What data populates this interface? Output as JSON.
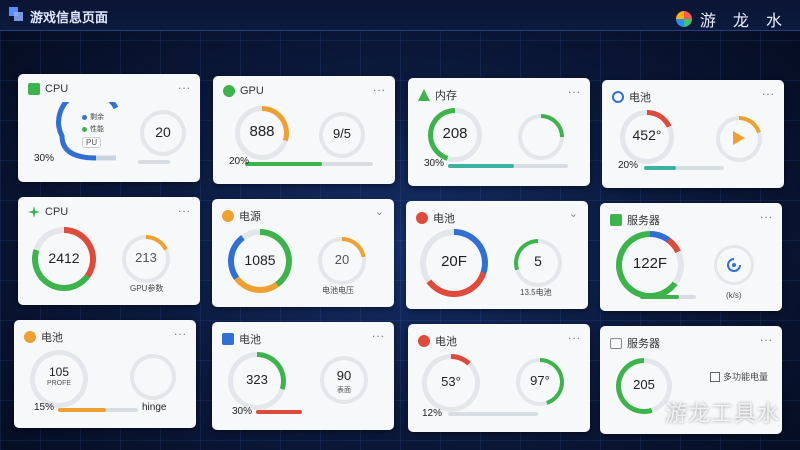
{
  "header": {
    "title": "游戏信息页面",
    "brand": "游 龙 水"
  },
  "watermark": "游龙工具水",
  "colors": {
    "green": "#3cb44b",
    "blue": "#2f6fd6",
    "red": "#e04a3a",
    "orange": "#f0a030",
    "teal": "#3bb3a0"
  },
  "cards": [
    {
      "title": "CPU",
      "icon": "cpu-icon",
      "menu": "...",
      "main": "20",
      "corner": "30%",
      "legend": [
        "剩余",
        "性能"
      ],
      "tag": "PU"
    },
    {
      "title": "GPU",
      "icon": "gpu-icon",
      "menu": "...",
      "main": "888",
      "second": "9/5",
      "corner": "20%"
    },
    {
      "title": "内存",
      "icon": "memory-icon",
      "menu": "...",
      "main": "208",
      "corner": "30%"
    },
    {
      "title": "电池",
      "icon": "battery-icon",
      "menu": "...",
      "main": "452°",
      "corner": "20%"
    },
    {
      "title": "CPU",
      "icon": "cpu-icon",
      "menu": "...",
      "main": "2412",
      "second": "213",
      "foot": "GPU参数"
    },
    {
      "title": "电源",
      "icon": "power-icon",
      "menu": "⌄",
      "main": "1085",
      "second": "20",
      "foot": "电池电压"
    },
    {
      "title": "电池",
      "icon": "battery-icon",
      "menu": "⌄",
      "main": "20F",
      "second": "5",
      "foot": "13.5电池"
    },
    {
      "title": "服务器",
      "icon": "server-icon",
      "menu": "...",
      "main": "122F",
      "foot": "(k/s)"
    },
    {
      "title": "电池",
      "icon": "battery-icon",
      "menu": "...",
      "main": "105",
      "sub": "PROFE",
      "corner": "15%",
      "right": "hinge"
    },
    {
      "title": "电池",
      "icon": "battery-icon",
      "menu": "...",
      "main": "323",
      "second": "90",
      "second_sub": "表面",
      "corner": "30%"
    },
    {
      "title": "电池",
      "icon": "battery-icon",
      "menu": "...",
      "main": "53°",
      "second": "97°",
      "corner": "12%"
    },
    {
      "title": "服务器",
      "icon": "server-icon",
      "menu": "...",
      "main": "205",
      "legend_text": "多功能电量"
    }
  ]
}
